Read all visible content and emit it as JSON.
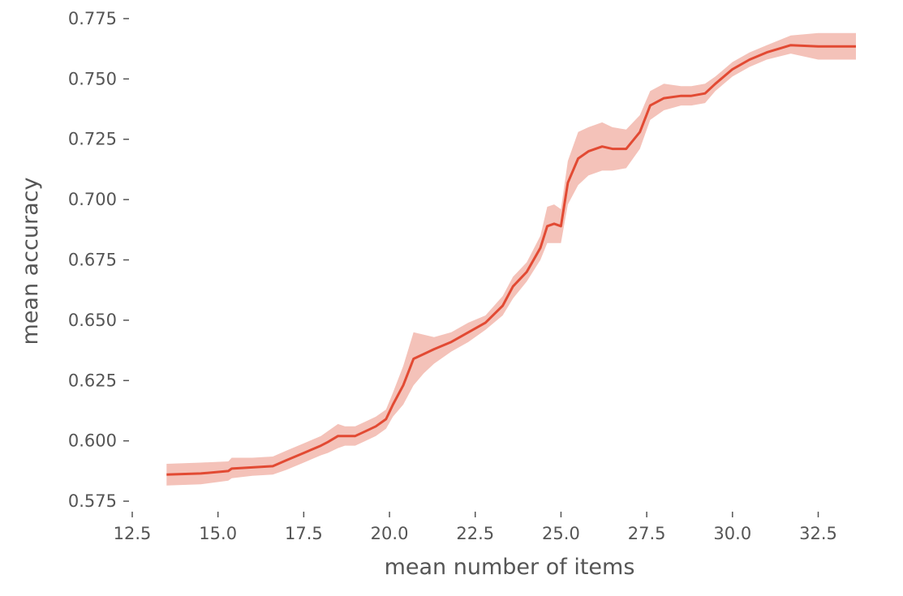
{
  "chart_data": {
    "type": "line",
    "xlabel": "mean number of items",
    "ylabel": "mean accuracy",
    "xlim": [
      12.5,
      33.6
    ],
    "ylim": [
      0.572,
      0.777
    ],
    "xticks": [
      "12.5",
      "15.0",
      "17.5",
      "20.0",
      "22.5",
      "25.0",
      "27.5",
      "30.0",
      "32.5"
    ],
    "yticks": [
      "0.575",
      "0.600",
      "0.625",
      "0.650",
      "0.675",
      "0.700",
      "0.725",
      "0.750",
      "0.775"
    ],
    "grid": false,
    "series": [
      {
        "color": "#E24A33",
        "band_color": "#F4C2B9",
        "x": [
          13.5,
          14.5,
          15.3,
          15.4,
          16.0,
          16.6,
          17.0,
          17.5,
          18.0,
          18.2,
          18.5,
          18.7,
          19.0,
          19.3,
          19.6,
          19.9,
          20.1,
          20.4,
          20.7,
          21.0,
          21.3,
          21.8,
          22.3,
          22.8,
          23.3,
          23.6,
          24.0,
          24.4,
          24.6,
          24.8,
          25.0,
          25.2,
          25.5,
          25.8,
          26.2,
          26.5,
          26.9,
          27.3,
          27.6,
          28.0,
          28.5,
          28.8,
          29.2,
          29.5,
          30.0,
          30.5,
          31.0,
          31.7,
          32.5,
          33.6
        ],
        "y": [
          0.586,
          0.5865,
          0.5875,
          0.5885,
          0.589,
          0.5895,
          0.592,
          0.595,
          0.598,
          0.5995,
          0.602,
          0.602,
          0.602,
          0.604,
          0.606,
          0.609,
          0.615,
          0.623,
          0.634,
          0.636,
          0.638,
          0.641,
          0.645,
          0.649,
          0.656,
          0.664,
          0.67,
          0.68,
          0.689,
          0.69,
          0.689,
          0.707,
          0.717,
          0.72,
          0.722,
          0.721,
          0.721,
          0.728,
          0.739,
          0.742,
          0.743,
          0.743,
          0.744,
          0.748,
          0.754,
          0.758,
          0.761,
          0.764,
          0.7635,
          0.7635
        ],
        "lower": [
          0.5815,
          0.582,
          0.5835,
          0.5845,
          0.5855,
          0.586,
          0.588,
          0.591,
          0.594,
          0.595,
          0.597,
          0.598,
          0.598,
          0.6,
          0.602,
          0.605,
          0.61,
          0.615,
          0.623,
          0.628,
          0.632,
          0.637,
          0.641,
          0.646,
          0.652,
          0.659,
          0.666,
          0.675,
          0.682,
          0.682,
          0.682,
          0.698,
          0.706,
          0.71,
          0.712,
          0.712,
          0.713,
          0.721,
          0.733,
          0.737,
          0.739,
          0.739,
          0.74,
          0.745,
          0.751,
          0.755,
          0.758,
          0.7605,
          0.758,
          0.758
        ],
        "upper": [
          0.5905,
          0.591,
          0.5915,
          0.593,
          0.593,
          0.5935,
          0.596,
          0.599,
          0.602,
          0.604,
          0.607,
          0.606,
          0.606,
          0.608,
          0.61,
          0.613,
          0.62,
          0.631,
          0.645,
          0.644,
          0.643,
          0.645,
          0.649,
          0.652,
          0.66,
          0.668,
          0.674,
          0.685,
          0.697,
          0.698,
          0.696,
          0.716,
          0.728,
          0.73,
          0.732,
          0.73,
          0.729,
          0.735,
          0.745,
          0.748,
          0.747,
          0.747,
          0.748,
          0.751,
          0.757,
          0.761,
          0.764,
          0.768,
          0.769,
          0.769
        ]
      }
    ]
  }
}
